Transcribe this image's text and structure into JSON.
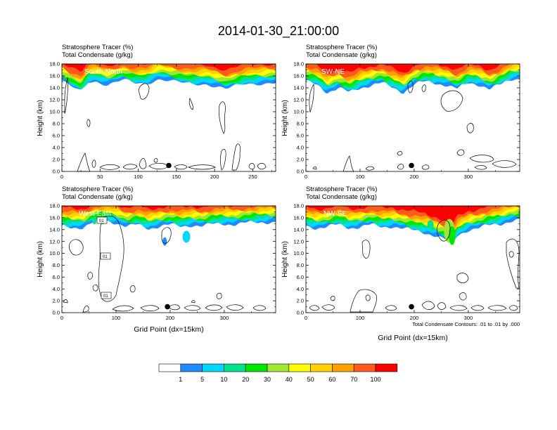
{
  "figure": {
    "title": "2014-01-30_21:00:00",
    "contour_info": "Total Condensate Contours: .01 to .01 by .000"
  },
  "colorbar": {
    "colors": [
      "#ffffff",
      "#1e8cff",
      "#00d7ff",
      "#00e38c",
      "#00e600",
      "#a0e632",
      "#ffff00",
      "#ffd200",
      "#ffa000",
      "#ff5a1e",
      "#ff0000"
    ],
    "labels": [
      "1",
      "5",
      "10",
      "20",
      "30",
      "40",
      "50",
      "60",
      "70",
      "100"
    ]
  },
  "chart_data": [
    {
      "type": "heatmap",
      "id": "south-north",
      "subtitle_line1": "Stratosphere Tracer   (%)",
      "subtitle_line2": "Total Condensate   (g/kg)",
      "panel_label": "South-North",
      "ylabel": "Height (km)",
      "xlabel": "",
      "ylim": [
        0,
        18
      ],
      "xlim": [
        0,
        280
      ],
      "yticks": [
        "0.0",
        "2.0",
        "4.0",
        "6.0",
        "8.0",
        "10.0",
        "12.0",
        "14.0",
        "16.0",
        "18.0"
      ],
      "xticks": [
        "0",
        "50",
        "100",
        "150",
        "200",
        "250"
      ],
      "xtick_values": [
        0,
        50,
        100,
        150,
        200,
        250
      ],
      "tropopause_profile": [
        [
          0,
          15.2
        ],
        [
          10,
          14.3
        ],
        [
          25,
          13.3
        ],
        [
          35,
          15.0
        ],
        [
          45,
          15.1
        ],
        [
          60,
          14.6
        ],
        [
          80,
          15.3
        ],
        [
          95,
          14.7
        ],
        [
          110,
          14.7
        ],
        [
          125,
          15.5
        ],
        [
          130,
          15.5
        ],
        [
          145,
          15.1
        ],
        [
          160,
          14.7
        ],
        [
          175,
          14.6
        ],
        [
          190,
          14.7
        ],
        [
          205,
          14.2
        ],
        [
          215,
          13.8
        ],
        [
          230,
          14.3
        ],
        [
          240,
          14.6
        ],
        [
          260,
          14.8
        ],
        [
          280,
          14.9
        ]
      ],
      "marker": {
        "x": 140,
        "y": 1.0
      }
    },
    {
      "type": "heatmap",
      "id": "sw-ne",
      "subtitle_line1": "Stratosphere Tracer   (%)",
      "subtitle_line2": "Total Condensate   (g/kg)",
      "panel_label": "SW-NE",
      "ylabel": "Height (km)",
      "xlabel": "",
      "ylim": [
        0,
        18
      ],
      "xlim": [
        0,
        395
      ],
      "yticks": [
        "0.0",
        "2.0",
        "4.0",
        "6.0",
        "8.0",
        "10.0",
        "12.0",
        "14.0",
        "16.0",
        "18.0"
      ],
      "xticks": [
        "0",
        "100",
        "200",
        "300"
      ],
      "xtick_values": [
        0,
        100,
        200,
        300
      ],
      "tropopause_profile": [
        [
          0,
          15.0
        ],
        [
          20,
          14.5
        ],
        [
          40,
          13.3
        ],
        [
          60,
          14.0
        ],
        [
          80,
          13.2
        ],
        [
          100,
          14.0
        ],
        [
          120,
          14.5
        ],
        [
          140,
          14.8
        ],
        [
          160,
          14.0
        ],
        [
          180,
          13.3
        ],
        [
          200,
          14.6
        ],
        [
          220,
          15.0
        ],
        [
          240,
          14.8
        ],
        [
          260,
          14.5
        ],
        [
          280,
          13.8
        ],
        [
          300,
          14.8
        ],
        [
          320,
          14.6
        ],
        [
          340,
          13.8
        ],
        [
          360,
          14.5
        ],
        [
          380,
          15.5
        ],
        [
          395,
          15.6
        ]
      ],
      "marker": {
        "x": 195,
        "y": 1.0
      }
    },
    {
      "type": "heatmap",
      "id": "west-east",
      "subtitle_line1": "Stratosphere Tracer   (%)",
      "subtitle_line2": "Total Condensate   (g/kg)",
      "panel_label": "West-East",
      "ylabel": "Height (km)",
      "xlabel": "Grid Point (dx=15km)",
      "ylim": [
        0,
        18
      ],
      "xlim": [
        0,
        395
      ],
      "yticks": [
        "0.0",
        "2.0",
        "4.0",
        "6.0",
        "8.0",
        "10.0",
        "12.0",
        "14.0",
        "16.0",
        "18.0"
      ],
      "xticks": [
        "0",
        "100",
        "200",
        "300"
      ],
      "xtick_values": [
        0,
        100,
        200,
        300
      ],
      "tropopause_profile": [
        [
          0,
          14.5
        ],
        [
          20,
          14.4
        ],
        [
          40,
          14.4
        ],
        [
          60,
          15.3
        ],
        [
          80,
          15.5
        ],
        [
          100,
          15.2
        ],
        [
          120,
          14.5
        ],
        [
          140,
          14.8
        ],
        [
          160,
          14.2
        ],
        [
          180,
          14.6
        ],
        [
          200,
          14.8
        ],
        [
          220,
          14.5
        ],
        [
          240,
          14.8
        ],
        [
          260,
          14.6
        ],
        [
          280,
          14.9
        ],
        [
          300,
          15.0
        ],
        [
          320,
          14.9
        ],
        [
          340,
          15.1
        ],
        [
          360,
          15.2
        ],
        [
          380,
          15.3
        ],
        [
          395,
          15.3
        ]
      ],
      "marker": {
        "x": 195,
        "y": 1.0
      },
      "contour_labels": [
        "01",
        "01",
        "01"
      ]
    },
    {
      "type": "heatmap",
      "id": "nw-se",
      "subtitle_line1": "Stratosphere Tracer   (%)",
      "subtitle_line2": "Total Condensate   (g/kg)",
      "panel_label": "NW-SE",
      "ylabel": "Height (km)",
      "xlabel": "Grid Point (dx=15km)",
      "ylim": [
        0,
        18
      ],
      "xlim": [
        0,
        395
      ],
      "yticks": [
        "0.0",
        "2.0",
        "4.0",
        "6.0",
        "8.0",
        "10.0",
        "12.0",
        "14.0",
        "16.0",
        "18.0"
      ],
      "xticks": [
        "0",
        "100",
        "200",
        "300"
      ],
      "xtick_values": [
        0,
        100,
        200,
        300
      ],
      "tropopause_profile": [
        [
          0,
          14.6
        ],
        [
          20,
          14.3
        ],
        [
          40,
          14.5
        ],
        [
          60,
          14.8
        ],
        [
          80,
          14.3
        ],
        [
          100,
          14.5
        ],
        [
          120,
          14.8
        ],
        [
          140,
          14.4
        ],
        [
          160,
          14.6
        ],
        [
          180,
          14.2
        ],
        [
          200,
          13.8
        ],
        [
          220,
          13.5
        ],
        [
          240,
          13.0
        ],
        [
          260,
          12.2
        ],
        [
          270,
          11.5
        ],
        [
          280,
          13.0
        ],
        [
          300,
          14.0
        ],
        [
          320,
          14.3
        ],
        [
          340,
          14.7
        ],
        [
          360,
          15.0
        ],
        [
          380,
          15.5
        ],
        [
          395,
          15.6
        ]
      ],
      "marker": {
        "x": 195,
        "y": 1.0
      }
    }
  ]
}
